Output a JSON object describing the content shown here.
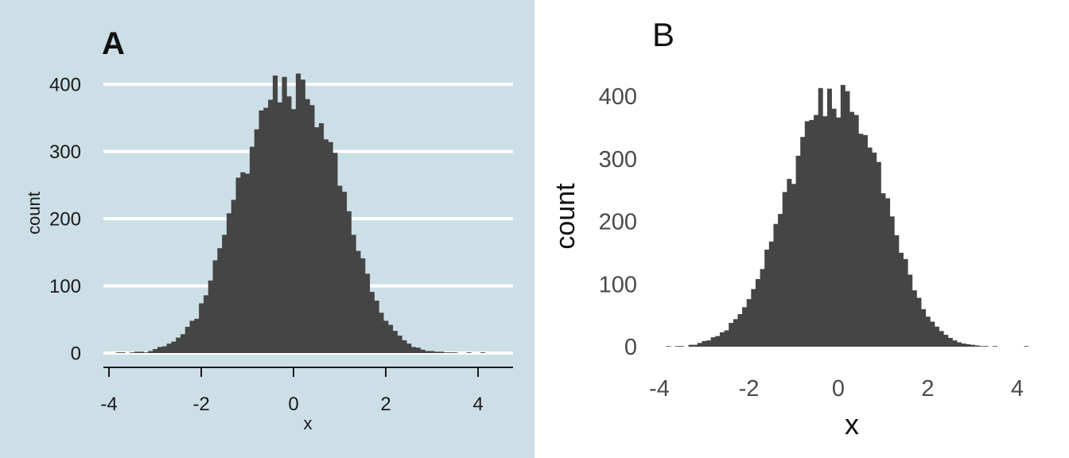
{
  "chart_data": [
    {
      "panel_label": "A",
      "type": "bar",
      "style": "histogram",
      "background": "#cddfe6",
      "bar_color": "#454545",
      "grid": "horizontal",
      "xlabel": "x",
      "ylabel": "count",
      "xlim": [
        -4.3,
        4.7
      ],
      "ylim": [
        0,
        420
      ],
      "xticks": [
        -4,
        -2,
        0,
        2,
        4
      ],
      "yticks": [
        0,
        100,
        200,
        300,
        400
      ],
      "x": [
        -4.2,
        -4.1,
        -4.0,
        -3.9,
        -3.8,
        -3.7,
        -3.6,
        -3.5,
        -3.4,
        -3.3,
        -3.2,
        -3.1,
        -3.0,
        -2.9,
        -2.8,
        -2.7,
        -2.6,
        -2.5,
        -2.4,
        -2.3,
        -2.2,
        -2.1,
        -2.0,
        -1.9,
        -1.8,
        -1.7,
        -1.6,
        -1.5,
        -1.4,
        -1.3,
        -1.2,
        -1.1,
        -1.0,
        -0.9,
        -0.8,
        -0.7,
        -0.6,
        -0.5,
        -0.4,
        -0.3,
        -0.2,
        -0.1,
        0.0,
        0.1,
        0.2,
        0.3,
        0.4,
        0.5,
        0.6,
        0.7,
        0.8,
        0.9,
        1.0,
        1.1,
        1.2,
        1.3,
        1.4,
        1.5,
        1.6,
        1.7,
        1.8,
        1.9,
        2.0,
        2.1,
        2.2,
        2.3,
        2.4,
        2.5,
        2.6,
        2.7,
        2.8,
        2.9,
        3.0,
        3.1,
        3.2,
        3.3,
        3.4,
        3.5,
        3.6,
        3.7,
        3.8,
        3.9,
        4.0,
        4.1,
        4.2,
        4.3,
        4.4
      ],
      "values": [
        0,
        0,
        0,
        0,
        1,
        1,
        0,
        1,
        2,
        2,
        1,
        3,
        6,
        9,
        10,
        14,
        17,
        23,
        28,
        39,
        48,
        51,
        74,
        86,
        108,
        138,
        156,
        176,
        208,
        228,
        261,
        269,
        267,
        307,
        333,
        361,
        365,
        377,
        413,
        373,
        411,
        382,
        363,
        416,
        407,
        378,
        369,
        336,
        342,
        318,
        314,
        298,
        249,
        240,
        211,
        176,
        152,
        141,
        118,
        91,
        78,
        60,
        48,
        42,
        33,
        26,
        19,
        14,
        9,
        8,
        5,
        3,
        3,
        2,
        2,
        1,
        1,
        1,
        0,
        0,
        1,
        0,
        0,
        1,
        0,
        0,
        0
      ]
    },
    {
      "panel_label": "B",
      "type": "bar",
      "style": "histogram",
      "background": "#ffffff",
      "bar_color": "#454545",
      "grid": "none",
      "xlabel": "x",
      "ylabel": "count",
      "xlim": [
        -4.3,
        4.5
      ],
      "ylim": [
        0,
        420
      ],
      "xticks": [
        -4,
        -2,
        0,
        2,
        4
      ],
      "yticks": [
        0,
        100,
        200,
        300,
        400
      ],
      "x": [
        -3.8,
        -3.7,
        -3.6,
        -3.5,
        -3.4,
        -3.3,
        -3.2,
        -3.1,
        -3.0,
        -2.9,
        -2.8,
        -2.7,
        -2.6,
        -2.5,
        -2.4,
        -2.3,
        -2.2,
        -2.1,
        -2.0,
        -1.9,
        -1.8,
        -1.7,
        -1.6,
        -1.5,
        -1.4,
        -1.3,
        -1.2,
        -1.1,
        -1.0,
        -0.9,
        -0.8,
        -0.7,
        -0.6,
        -0.5,
        -0.4,
        -0.3,
        -0.2,
        -0.1,
        0.0,
        0.1,
        0.2,
        0.3,
        0.4,
        0.5,
        0.6,
        0.7,
        0.8,
        0.9,
        1.0,
        1.1,
        1.2,
        1.3,
        1.4,
        1.5,
        1.6,
        1.7,
        1.8,
        1.9,
        2.0,
        2.1,
        2.2,
        2.3,
        2.4,
        2.5,
        2.6,
        2.7,
        2.8,
        2.9,
        3.0,
        3.1,
        3.2,
        3.3,
        3.4,
        3.5,
        3.6,
        3.7,
        3.8,
        3.9,
        4.0,
        4.1,
        4.2
      ],
      "values": [
        1,
        0,
        1,
        1,
        0,
        3,
        3,
        6,
        9,
        10,
        15,
        17,
        23,
        26,
        38,
        44,
        52,
        63,
        76,
        92,
        108,
        124,
        155,
        168,
        196,
        212,
        247,
        268,
        260,
        305,
        335,
        360,
        362,
        370,
        413,
        368,
        412,
        380,
        366,
        418,
        408,
        375,
        370,
        340,
        338,
        318,
        310,
        295,
        245,
        237,
        208,
        178,
        150,
        140,
        115,
        90,
        78,
        60,
        48,
        40,
        32,
        25,
        19,
        14,
        10,
        7,
        5,
        4,
        3,
        2,
        1,
        1,
        0,
        1,
        0,
        0,
        0,
        0,
        0,
        0,
        1
      ]
    }
  ]
}
